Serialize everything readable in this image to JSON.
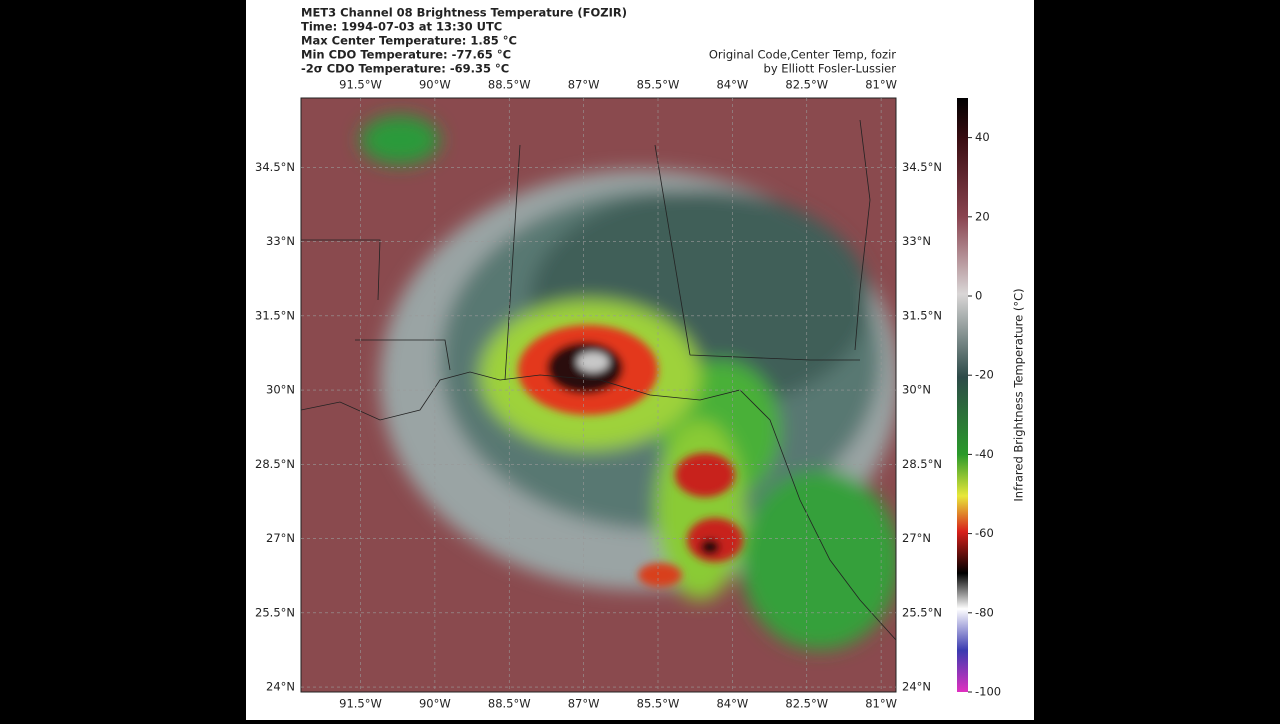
{
  "title_lines": [
    "MET3 Channel 08 Brightness Temperature (FOZIR)",
    "Time: 1994-07-03 at 13:30 UTC",
    "Max Center Temperature: 1.85 °C",
    "Min CDO Temperature: -77.65 °C",
    "-2σ CDO Temperature: -69.35 °C"
  ],
  "attribution": [
    "Original Code,Center Temp, fozir",
    "by Elliott Fosler-Lussier"
  ],
  "map": {
    "xlim": [
      -92.7,
      -80.7
    ],
    "ylim": [
      23.9,
      35.9
    ],
    "xticks": [
      {
        "value": -91.5,
        "label": "91.5°W"
      },
      {
        "value": -90,
        "label": "90°W"
      },
      {
        "value": -88.5,
        "label": "88.5°W"
      },
      {
        "value": -87,
        "label": "87°W"
      },
      {
        "value": -85.5,
        "label": "85.5°W"
      },
      {
        "value": -84,
        "label": "84°W"
      },
      {
        "value": -82.5,
        "label": "82.5°W"
      },
      {
        "value": -81,
        "label": "81°W"
      }
    ],
    "yticks": [
      {
        "value": 34.5,
        "label": "34.5°N"
      },
      {
        "value": 33,
        "label": "33°N"
      },
      {
        "value": 31.5,
        "label": "31.5°N"
      },
      {
        "value": 30,
        "label": "30°N"
      },
      {
        "value": 28.5,
        "label": "28.5°N"
      },
      {
        "value": 27,
        "label": "27°N"
      },
      {
        "value": 25.5,
        "label": "25.5°N"
      },
      {
        "value": 24,
        "label": "24°N"
      }
    ]
  },
  "colorbar": {
    "label": "Infrared Brightness Temperature (°C)",
    "lim": [
      -100,
      50
    ],
    "ticks": [
      40,
      20,
      0,
      -20,
      -40,
      -60,
      -80,
      -100
    ]
  }
}
